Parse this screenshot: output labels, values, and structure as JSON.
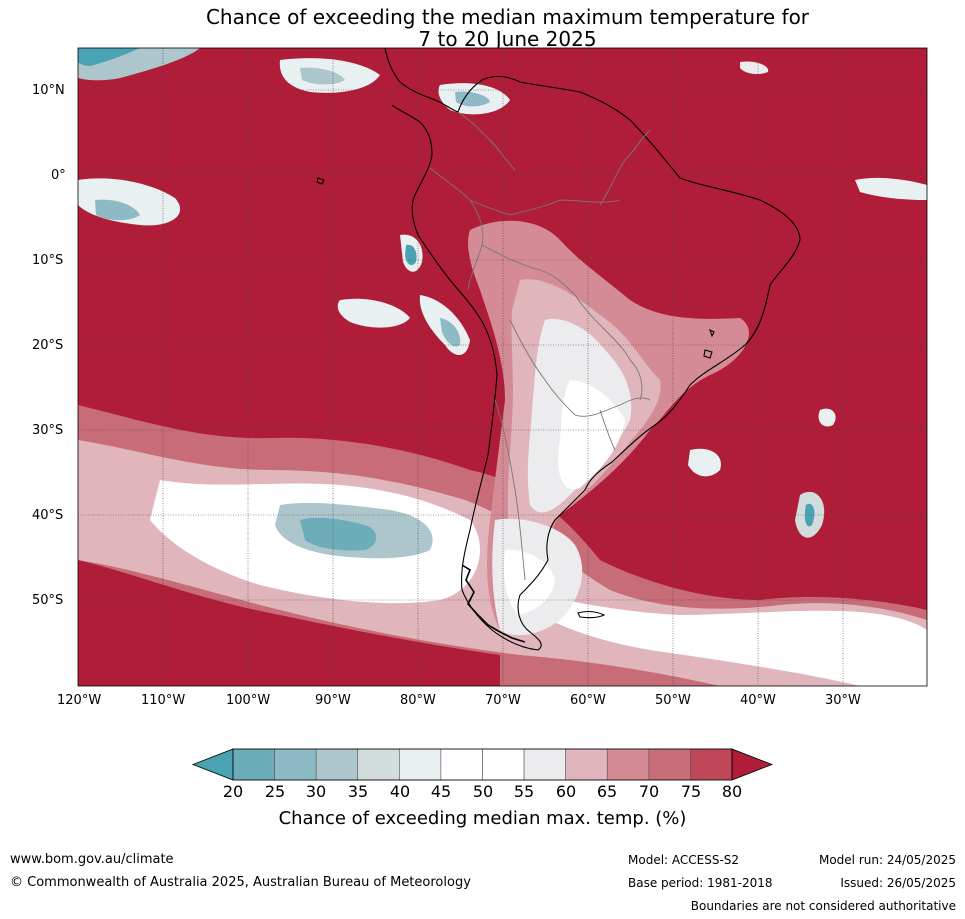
{
  "title": {
    "line1": "Chance of exceeding the median maximum temperature for",
    "line2": "7 to 20 June 2025"
  },
  "map": {
    "lat_labels": [
      "10°N",
      "0°",
      "10°S",
      "20°S",
      "30°S",
      "40°S",
      "50°S"
    ],
    "lon_labels": [
      "120°W",
      "110°W",
      "100°W",
      "90°W",
      "80°W",
      "70°W",
      "60°W",
      "50°W",
      "40°W",
      "30°W"
    ]
  },
  "legend": {
    "ticks": [
      "20",
      "25",
      "30",
      "35",
      "40",
      "45",
      "50",
      "55",
      "60",
      "65",
      "70",
      "75",
      "80"
    ],
    "colors": [
      "#4aa3b3",
      "#6dadba",
      "#8ebac6",
      "#adc6cb",
      "#d3dcdd",
      "#e9f0f2",
      "#ffffff",
      "#ffffff",
      "#ececee",
      "#e0b5bc",
      "#d58b95",
      "#c86c78",
      "#be4858",
      "#b01d39"
    ],
    "label": "Chance of exceeding median max. temp. (%)"
  },
  "footer": {
    "url": "www.bom.gov.au/climate",
    "copyright": "© Commonwealth of Australia 2025, Australian Bureau of Meteorology",
    "model": "Model: ACCESS-S2",
    "base_period": "Base period: 1981-2018",
    "model_run": "Model run: 24/05/2025",
    "issued": "Issued: 26/05/2025",
    "disclaimer": "Boundaries are not considered authoritative"
  }
}
